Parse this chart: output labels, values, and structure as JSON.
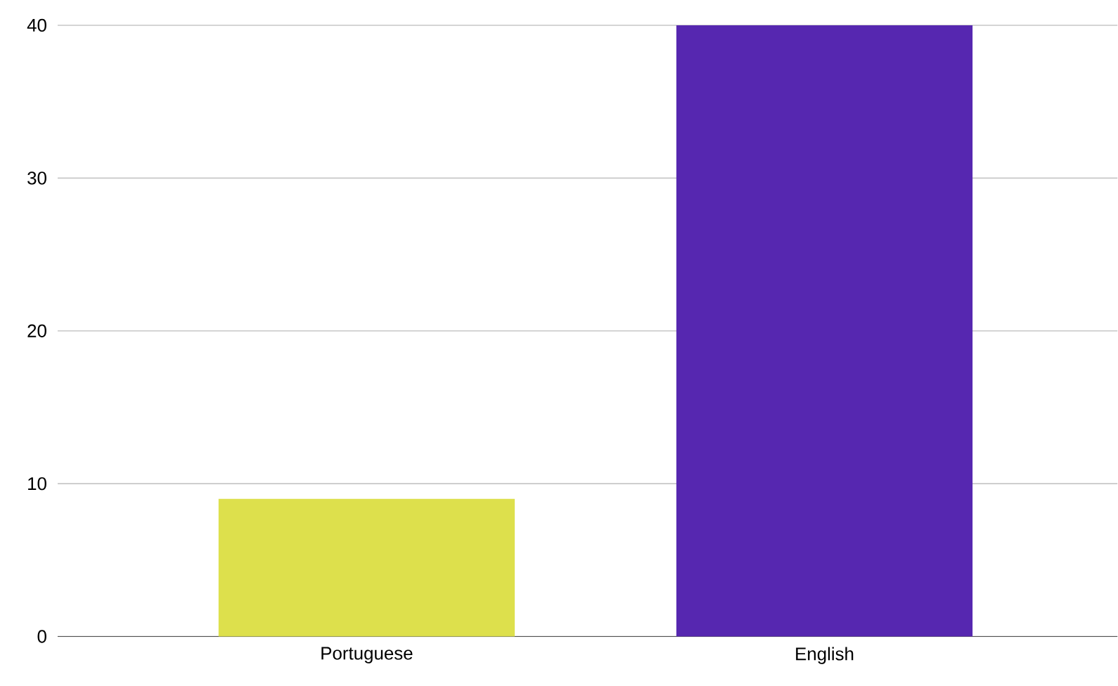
{
  "chart_data": {
    "type": "bar",
    "categories": [
      "Portuguese",
      "English"
    ],
    "values": [
      9,
      40
    ],
    "colors": [
      "#dde04c",
      "#5627b0"
    ],
    "ylim": [
      0,
      40
    ],
    "yticks": [
      0,
      10,
      20,
      30,
      40
    ],
    "grid": "y"
  }
}
